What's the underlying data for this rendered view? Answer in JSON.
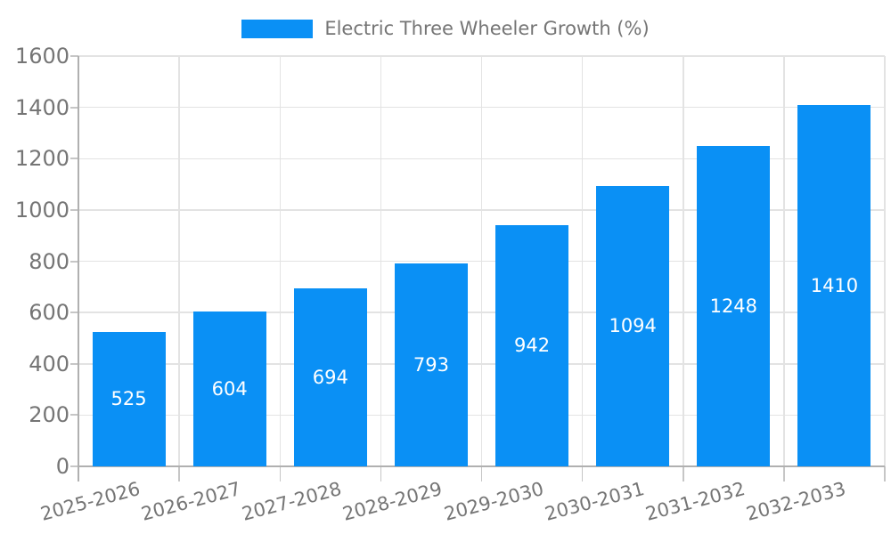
{
  "chart_data": {
    "type": "bar",
    "title": "Electric Three Wheeler Growth (%)",
    "legend": {
      "label": "Electric Three Wheeler Growth (%)",
      "position": "top-center"
    },
    "categories": [
      "2025-2026",
      "2026-2027",
      "2027-2028",
      "2028-2029",
      "2029-2030",
      "2030-2031",
      "2031-2032",
      "2032-2033"
    ],
    "values": [
      525,
      604,
      694,
      793,
      942,
      1094,
      1248,
      1410
    ],
    "xlabel": "",
    "ylabel": "",
    "ylim": [
      0,
      1600
    ],
    "yticks": [
      0,
      200,
      400,
      600,
      800,
      1000,
      1200,
      1400,
      1600
    ],
    "grid": true,
    "bar_color": "#0a90f5",
    "axis_label_color": "#757575",
    "value_label_color": "#ffffff",
    "gridline_color": "#e3e3e3",
    "axis_line_color": "#b0b0b0",
    "tick_color": "#c6c6c6"
  }
}
